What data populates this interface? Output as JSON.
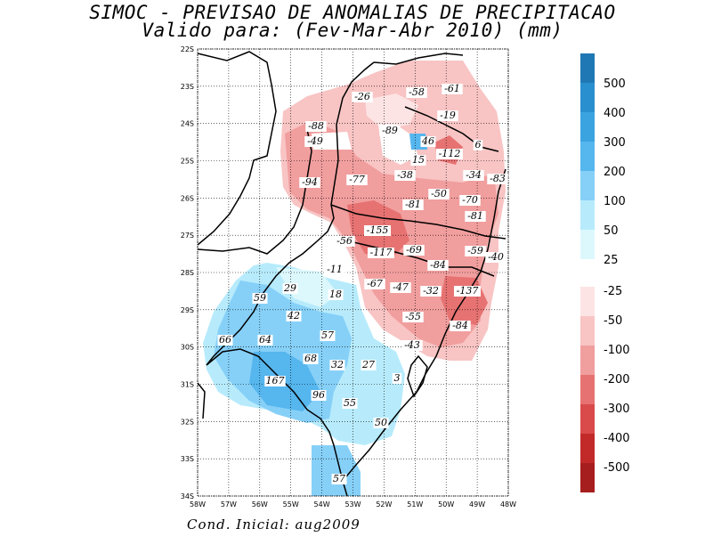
{
  "title_line1": "SIMOC - PREVISAO DE ANOMALIAS DE PRECIPITACAO",
  "title_line2": "Valido para: (Fev-Mar-Abr 2010) (mm)",
  "footer": "Cond. Inicial: aug2009",
  "axes": {
    "lat_ticks": [
      "22S",
      "23S",
      "24S",
      "25S",
      "26S",
      "27S",
      "28S",
      "29S",
      "30S",
      "31S",
      "32S",
      "33S",
      "34S"
    ],
    "lon_ticks": [
      "58W",
      "57W",
      "56W",
      "55W",
      "54W",
      "53W",
      "52W",
      "51W",
      "50W",
      "49W",
      "48W"
    ]
  },
  "colorbar": {
    "positive": [
      {
        "label": "500",
        "color": "#1f78b4"
      },
      {
        "label": "400",
        "color": "#2a8fcf"
      },
      {
        "label": "300",
        "color": "#3ba3e0"
      },
      {
        "label": "200",
        "color": "#56b6ee"
      },
      {
        "label": "100",
        "color": "#86d0f8"
      },
      {
        "label": "50",
        "color": "#b7ebfc"
      },
      {
        "label": "25",
        "color": "#dcf8fd"
      }
    ],
    "negative": [
      {
        "label": "-25",
        "color": "#fde4e4"
      },
      {
        "label": "-50",
        "color": "#f8c4c4"
      },
      {
        "label": "-100",
        "color": "#f19e9e"
      },
      {
        "label": "-200",
        "color": "#e77272"
      },
      {
        "label": "-300",
        "color": "#d94a4a"
      },
      {
        "label": "-400",
        "color": "#c22a2a"
      },
      {
        "label": "-500",
        "color": "#a71e1e"
      }
    ]
  },
  "value_labels": [
    "-26",
    "-58",
    "-61",
    "-19",
    "-88",
    "-89",
    "-49",
    "46",
    "-112",
    "6",
    "15",
    "-34",
    "-94",
    "-77",
    "-38",
    "-83",
    "-50",
    "-70",
    "-81",
    "-81",
    "-155",
    "-56",
    "-117",
    "-69",
    "-59",
    "-40",
    "-84",
    "-11",
    "-67",
    "-47",
    "-32",
    "-137",
    "29",
    "18",
    "59",
    "42",
    "-55",
    "-84",
    "57",
    "64",
    "66",
    "-43",
    "68",
    "32",
    "27",
    "167",
    "96",
    "3",
    "55",
    "50",
    "57"
  ]
}
